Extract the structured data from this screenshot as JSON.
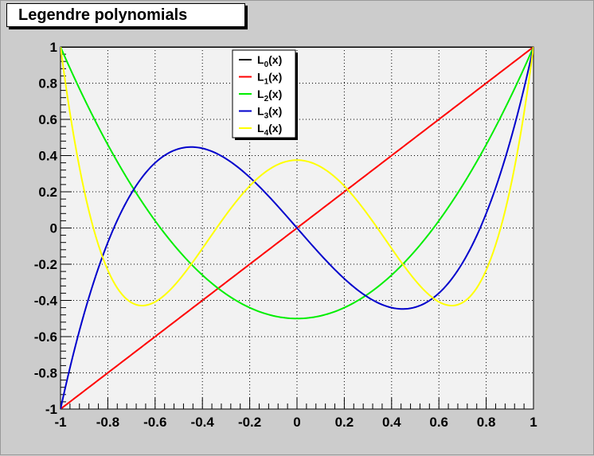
{
  "chart_data": {
    "type": "line",
    "title": "Legendre polynomials",
    "xlabel": "",
    "ylabel": "",
    "xlim": [
      -1,
      1
    ],
    "ylim": [
      -1,
      1
    ],
    "grid": true,
    "legend_position": "top-center",
    "x_ticks": [
      "-1",
      "-0.8",
      "-0.6",
      "-0.4",
      "-0.2",
      "0",
      "0.2",
      "0.4",
      "0.6",
      "0.8",
      "1"
    ],
    "y_ticks": [
      "-1",
      "-0.8",
      "-0.6",
      "-0.4",
      "-0.2",
      "0",
      "0.2",
      "0.4",
      "0.6",
      "0.8",
      "1"
    ],
    "x": [
      -1.0,
      -0.9,
      -0.8,
      -0.7,
      -0.6,
      -0.5,
      -0.4,
      -0.3,
      -0.2,
      -0.1,
      0.0,
      0.1,
      0.2,
      0.3,
      0.4,
      0.5,
      0.6,
      0.7,
      0.8,
      0.9,
      1.0
    ],
    "series": [
      {
        "label_main": "L",
        "label_sub": "0",
        "label_tail": "(x)",
        "color": "#000000",
        "values": [
          1,
          1,
          1,
          1,
          1,
          1,
          1,
          1,
          1,
          1,
          1,
          1,
          1,
          1,
          1,
          1,
          1,
          1,
          1,
          1,
          1
        ]
      },
      {
        "label_main": "L",
        "label_sub": "1",
        "label_tail": "(x)",
        "color": "#ff0000",
        "values": [
          -1.0,
          -0.9,
          -0.8,
          -0.7,
          -0.6,
          -0.5,
          -0.4,
          -0.3,
          -0.2,
          -0.1,
          0.0,
          0.1,
          0.2,
          0.3,
          0.4,
          0.5,
          0.6,
          0.7,
          0.8,
          0.9,
          1.0
        ]
      },
      {
        "label_main": "L",
        "label_sub": "2",
        "label_tail": "(x)",
        "color": "#00ee00",
        "values": [
          1.0,
          0.715,
          0.46,
          0.235,
          0.04,
          -0.125,
          -0.26,
          -0.365,
          -0.44,
          -0.485,
          -0.5,
          -0.485,
          -0.44,
          -0.365,
          -0.26,
          -0.125,
          0.04,
          0.235,
          0.46,
          0.715,
          1.0
        ]
      },
      {
        "label_main": "L",
        "label_sub": "3",
        "label_tail": "(x)",
        "color": "#0000cc",
        "values": [
          -1.0,
          -0.4725,
          -0.08,
          0.1925,
          0.36,
          0.4375,
          0.44,
          0.3825,
          0.28,
          0.1475,
          0.0,
          -0.1475,
          -0.28,
          -0.3825,
          -0.44,
          -0.4375,
          -0.36,
          -0.1925,
          0.08,
          0.4725,
          1.0
        ]
      },
      {
        "label_main": "L",
        "label_sub": "4",
        "label_tail": "(x)",
        "color": "#ffff00",
        "values": [
          1.0,
          0.2079,
          -0.233,
          -0.4121,
          -0.408,
          -0.2891,
          -0.113,
          0.0729,
          0.232,
          0.3379,
          0.375,
          0.3379,
          0.232,
          0.0729,
          -0.113,
          -0.2891,
          -0.408,
          -0.4121,
          -0.233,
          0.2079,
          1.0
        ]
      }
    ]
  }
}
